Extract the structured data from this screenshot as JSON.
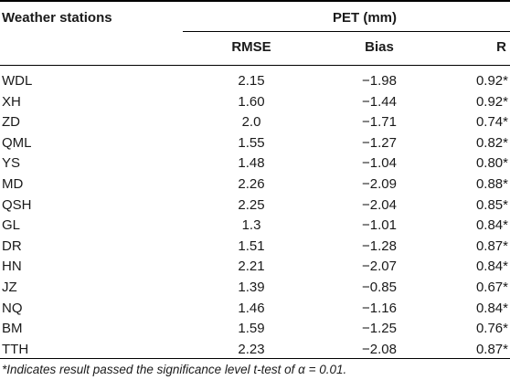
{
  "table": {
    "header": {
      "stations_label": "Weather stations",
      "group_label": "PET (mm)",
      "columns": [
        "RMSE",
        "Bias",
        "R"
      ]
    },
    "rows": [
      {
        "station": "WDL",
        "rmse": "2.15",
        "bias": "−1.98",
        "r": "0.92*"
      },
      {
        "station": "XH",
        "rmse": "1.60",
        "bias": "−1.44",
        "r": "0.92*"
      },
      {
        "station": "ZD",
        "rmse": "2.0",
        "bias": "−1.71",
        "r": "0.74*"
      },
      {
        "station": "QML",
        "rmse": "1.55",
        "bias": "−1.27",
        "r": "0.82*"
      },
      {
        "station": "YS",
        "rmse": "1.48",
        "bias": "−1.04",
        "r": "0.80*"
      },
      {
        "station": "MD",
        "rmse": "2.26",
        "bias": "−2.09",
        "r": "0.88*"
      },
      {
        "station": "QSH",
        "rmse": "2.25",
        "bias": "−2.04",
        "r": "0.85*"
      },
      {
        "station": "GL",
        "rmse": "1.3",
        "bias": "−1.01",
        "r": "0.84*"
      },
      {
        "station": "DR",
        "rmse": "1.51",
        "bias": "−1.28",
        "r": "0.87*"
      },
      {
        "station": "HN",
        "rmse": "2.21",
        "bias": "−2.07",
        "r": "0.84*"
      },
      {
        "station": "JZ",
        "rmse": "1.39",
        "bias": "−0.85",
        "r": "0.67*"
      },
      {
        "station": "NQ",
        "rmse": "1.46",
        "bias": "−1.16",
        "r": "0.84*"
      },
      {
        "station": "BM",
        "rmse": "1.59",
        "bias": "−1.25",
        "r": "0.76*"
      },
      {
        "station": "TTH",
        "rmse": "2.23",
        "bias": "−2.08",
        "r": "0.87*"
      }
    ],
    "footnote": "*Indicates result passed the significance level t-test of α = 0.01."
  }
}
